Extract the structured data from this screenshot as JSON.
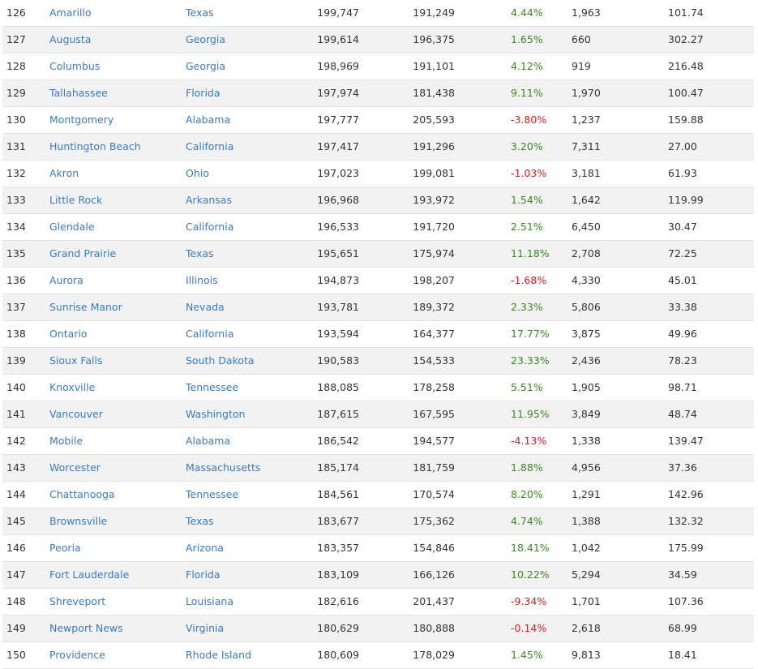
{
  "colors": {
    "link": "#3a7bbf",
    "positive": "#3a8a1f",
    "negative": "#d42020",
    "stripe": "#f2f2f2"
  },
  "rows": [
    {
      "rank": "126",
      "city": "Amarillo",
      "state": "Texas",
      "pop_2023": "199,747",
      "pop_2020": "191,249",
      "change": "4.44%",
      "change_sign": "pos",
      "density": "1,963",
      "area": "101.74"
    },
    {
      "rank": "127",
      "city": "Augusta",
      "state": "Georgia",
      "pop_2023": "199,614",
      "pop_2020": "196,375",
      "change": "1.65%",
      "change_sign": "pos",
      "density": "660",
      "area": "302.27"
    },
    {
      "rank": "128",
      "city": "Columbus",
      "state": "Georgia",
      "pop_2023": "198,969",
      "pop_2020": "191,101",
      "change": "4.12%",
      "change_sign": "pos",
      "density": "919",
      "area": "216.48"
    },
    {
      "rank": "129",
      "city": "Tallahassee",
      "state": "Florida",
      "pop_2023": "197,974",
      "pop_2020": "181,438",
      "change": "9.11%",
      "change_sign": "pos",
      "density": "1,970",
      "area": "100.47"
    },
    {
      "rank": "130",
      "city": "Montgomery",
      "state": "Alabama",
      "pop_2023": "197,777",
      "pop_2020": "205,593",
      "change": "-3.80%",
      "change_sign": "neg",
      "density": "1,237",
      "area": "159.88"
    },
    {
      "rank": "131",
      "city": "Huntington Beach",
      "state": "California",
      "pop_2023": "197,417",
      "pop_2020": "191,296",
      "change": "3.20%",
      "change_sign": "pos",
      "density": "7,311",
      "area": "27.00"
    },
    {
      "rank": "132",
      "city": "Akron",
      "state": "Ohio",
      "pop_2023": "197,023",
      "pop_2020": "199,081",
      "change": "-1.03%",
      "change_sign": "neg",
      "density": "3,181",
      "area": "61.93"
    },
    {
      "rank": "133",
      "city": "Little Rock",
      "state": "Arkansas",
      "pop_2023": "196,968",
      "pop_2020": "193,972",
      "change": "1.54%",
      "change_sign": "pos",
      "density": "1,642",
      "area": "119.99"
    },
    {
      "rank": "134",
      "city": "Glendale",
      "state": "California",
      "pop_2023": "196,533",
      "pop_2020": "191,720",
      "change": "2.51%",
      "change_sign": "pos",
      "density": "6,450",
      "area": "30.47"
    },
    {
      "rank": "135",
      "city": "Grand Prairie",
      "state": "Texas",
      "pop_2023": "195,651",
      "pop_2020": "175,974",
      "change": "11.18%",
      "change_sign": "pos",
      "density": "2,708",
      "area": "72.25"
    },
    {
      "rank": "136",
      "city": "Aurora",
      "state": "Illinois",
      "pop_2023": "194,873",
      "pop_2020": "198,207",
      "change": "-1.68%",
      "change_sign": "neg",
      "density": "4,330",
      "area": "45.01"
    },
    {
      "rank": "137",
      "city": "Sunrise Manor",
      "state": "Nevada",
      "pop_2023": "193,781",
      "pop_2020": "189,372",
      "change": "2.33%",
      "change_sign": "pos",
      "density": "5,806",
      "area": "33.38"
    },
    {
      "rank": "138",
      "city": "Ontario",
      "state": "California",
      "pop_2023": "193,594",
      "pop_2020": "164,377",
      "change": "17.77%",
      "change_sign": "pos",
      "density": "3,875",
      "area": "49.96"
    },
    {
      "rank": "139",
      "city": "Sioux Falls",
      "state": "South Dakota",
      "pop_2023": "190,583",
      "pop_2020": "154,533",
      "change": "23.33%",
      "change_sign": "pos",
      "density": "2,436",
      "area": "78.23"
    },
    {
      "rank": "140",
      "city": "Knoxville",
      "state": "Tennessee",
      "pop_2023": "188,085",
      "pop_2020": "178,258",
      "change": "5.51%",
      "change_sign": "pos",
      "density": "1,905",
      "area": "98.71"
    },
    {
      "rank": "141",
      "city": "Vancouver",
      "state": "Washington",
      "pop_2023": "187,615",
      "pop_2020": "167,595",
      "change": "11.95%",
      "change_sign": "pos",
      "density": "3,849",
      "area": "48.74"
    },
    {
      "rank": "142",
      "city": "Mobile",
      "state": "Alabama",
      "pop_2023": "186,542",
      "pop_2020": "194,577",
      "change": "-4.13%",
      "change_sign": "neg",
      "density": "1,338",
      "area": "139.47"
    },
    {
      "rank": "143",
      "city": "Worcester",
      "state": "Massachusetts",
      "pop_2023": "185,174",
      "pop_2020": "181,759",
      "change": "1.88%",
      "change_sign": "pos",
      "density": "4,956",
      "area": "37.36"
    },
    {
      "rank": "144",
      "city": "Chattanooga",
      "state": "Tennessee",
      "pop_2023": "184,561",
      "pop_2020": "170,574",
      "change": "8.20%",
      "change_sign": "pos",
      "density": "1,291",
      "area": "142.96"
    },
    {
      "rank": "145",
      "city": "Brownsville",
      "state": "Texas",
      "pop_2023": "183,677",
      "pop_2020": "175,362",
      "change": "4.74%",
      "change_sign": "pos",
      "density": "1,388",
      "area": "132.32"
    },
    {
      "rank": "146",
      "city": "Peoria",
      "state": "Arizona",
      "pop_2023": "183,357",
      "pop_2020": "154,846",
      "change": "18.41%",
      "change_sign": "pos",
      "density": "1,042",
      "area": "175.99"
    },
    {
      "rank": "147",
      "city": "Fort Lauderdale",
      "state": "Florida",
      "pop_2023": "183,109",
      "pop_2020": "166,126",
      "change": "10.22%",
      "change_sign": "pos",
      "density": "5,294",
      "area": "34.59"
    },
    {
      "rank": "148",
      "city": "Shreveport",
      "state": "Louisiana",
      "pop_2023": "182,616",
      "pop_2020": "201,437",
      "change": "-9.34%",
      "change_sign": "neg",
      "density": "1,701",
      "area": "107.36"
    },
    {
      "rank": "149",
      "city": "Newport News",
      "state": "Virginia",
      "pop_2023": "180,629",
      "pop_2020": "180,888",
      "change": "-0.14%",
      "change_sign": "neg",
      "density": "2,618",
      "area": "68.99"
    },
    {
      "rank": "150",
      "city": "Providence",
      "state": "Rhode Island",
      "pop_2023": "180,609",
      "pop_2020": "178,029",
      "change": "1.45%",
      "change_sign": "pos",
      "density": "9,813",
      "area": "18.41"
    }
  ]
}
